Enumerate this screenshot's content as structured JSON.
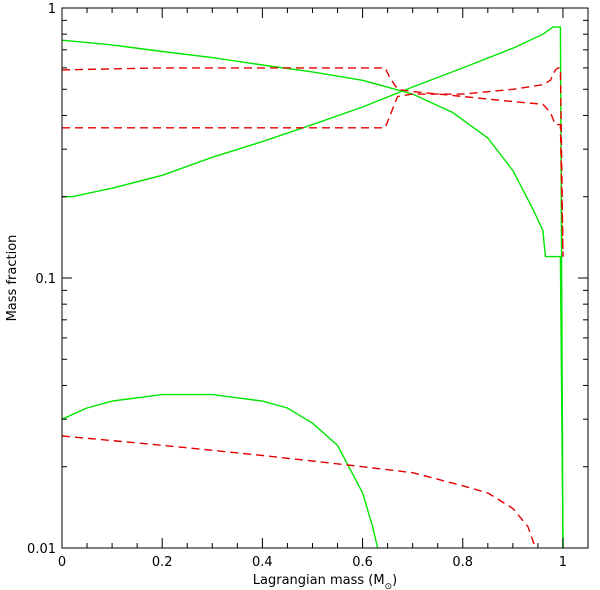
{
  "chart_data": {
    "type": "line",
    "title": "",
    "xlabel": "Lagrangian mass (M",
    "xlabel_sub": "⊙",
    "xlabel_close": ")",
    "ylabel": "Mass fraction",
    "xlim": [
      0,
      1.05
    ],
    "ylim": [
      0.01,
      1
    ],
    "yscale": "log",
    "grid": false,
    "x_ticks": [
      0,
      0.2,
      0.4,
      0.6,
      0.8,
      1
    ],
    "x_tick_labels": [
      "0",
      "0.2",
      "0.4",
      "0.6",
      "0.8",
      "1"
    ],
    "y_ticks": [
      0.01,
      0.1,
      1
    ],
    "y_tick_labels": [
      "0.01",
      "0.1",
      "1"
    ],
    "series": [
      {
        "color": "#00e600",
        "dash": "solid",
        "x": [
          0.0,
          0.1,
          0.2,
          0.3,
          0.4,
          0.5,
          0.6,
          0.7,
          0.78,
          0.85,
          0.9,
          0.94,
          0.96,
          0.965,
          0.99,
          0.995,
          1.0
        ],
        "y": [
          0.76,
          0.73,
          0.69,
          0.655,
          0.615,
          0.58,
          0.54,
          0.48,
          0.41,
          0.33,
          0.25,
          0.18,
          0.15,
          0.12,
          0.12,
          0.12,
          0.01
        ]
      },
      {
        "color": "#00e600",
        "dash": "solid",
        "x": [
          0.0,
          0.02,
          0.1,
          0.2,
          0.3,
          0.4,
          0.5,
          0.6,
          0.7,
          0.8,
          0.9,
          0.96,
          0.98,
          0.99,
          0.995,
          1.0
        ],
        "y": [
          0.2,
          0.2,
          0.215,
          0.24,
          0.28,
          0.32,
          0.37,
          0.43,
          0.51,
          0.6,
          0.71,
          0.8,
          0.85,
          0.85,
          0.85,
          0.01
        ]
      },
      {
        "color": "#e60000",
        "dash": "dashed",
        "x": [
          0.0,
          0.1,
          0.2,
          0.3,
          0.4,
          0.5,
          0.6,
          0.645,
          0.655,
          0.67,
          0.7,
          0.8,
          0.9,
          0.96,
          0.975,
          0.985,
          0.99,
          0.995,
          1.0
        ],
        "y": [
          0.59,
          0.595,
          0.6,
          0.6,
          0.6,
          0.6,
          0.6,
          0.6,
          0.55,
          0.5,
          0.49,
          0.47,
          0.45,
          0.44,
          0.41,
          0.37,
          0.37,
          0.37,
          0.12
        ]
      },
      {
        "color": "#e60000",
        "dash": "dashed",
        "x": [
          0.0,
          0.1,
          0.2,
          0.3,
          0.4,
          0.5,
          0.6,
          0.645,
          0.655,
          0.67,
          0.7,
          0.8,
          0.9,
          0.96,
          0.975,
          0.985,
          0.99,
          0.995,
          1.0
        ],
        "y": [
          0.36,
          0.36,
          0.36,
          0.36,
          0.36,
          0.36,
          0.36,
          0.36,
          0.4,
          0.47,
          0.48,
          0.48,
          0.5,
          0.52,
          0.54,
          0.59,
          0.6,
          0.6,
          0.12
        ]
      },
      {
        "color": "#00e600",
        "dash": "solid",
        "x": [
          0.0,
          0.05,
          0.1,
          0.15,
          0.2,
          0.25,
          0.3,
          0.35,
          0.4,
          0.45,
          0.5,
          0.55,
          0.6,
          0.62,
          0.63
        ],
        "y": [
          0.03,
          0.033,
          0.035,
          0.036,
          0.037,
          0.037,
          0.037,
          0.036,
          0.035,
          0.033,
          0.029,
          0.024,
          0.016,
          0.012,
          0.01
        ]
      },
      {
        "color": "#e60000",
        "dash": "dashed",
        "x": [
          0.0,
          0.1,
          0.2,
          0.3,
          0.4,
          0.5,
          0.6,
          0.7,
          0.8,
          0.85,
          0.9,
          0.93,
          0.945
        ],
        "y": [
          0.026,
          0.025,
          0.024,
          0.023,
          0.022,
          0.021,
          0.02,
          0.019,
          0.017,
          0.016,
          0.014,
          0.012,
          0.01
        ]
      }
    ]
  }
}
